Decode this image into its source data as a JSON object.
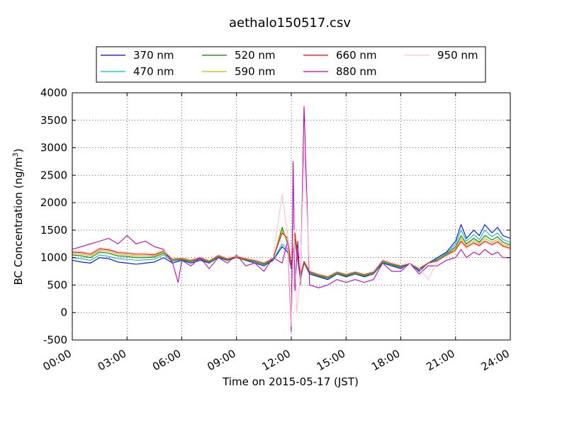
{
  "chart_data": {
    "type": "line",
    "title": "aethalo150517.csv",
    "xlabel": "Time on 2015-05-17 (JST)",
    "ylabel": "BC Concentration (ng/m",
    "ylabel_sup": "3",
    "ylabel_close": ")",
    "xlim": [
      "2015-05-17 00:00",
      "2015-05-18 00:00"
    ],
    "ylim": [
      -500,
      4000
    ],
    "x_ticks": [
      "00:00",
      "03:00",
      "06:00",
      "09:00",
      "12:00",
      "15:00",
      "18:00",
      "21:00",
      "24:00"
    ],
    "y_ticks": [
      -500,
      0,
      500,
      1000,
      1500,
      2000,
      2500,
      3000,
      3500,
      4000
    ],
    "grid": true,
    "legend_position": "top-center",
    "x_unit": "hours since 2015-05-17 00:00",
    "series": [
      {
        "name": "370 nm",
        "color": "#0000ff",
        "x": [
          0,
          0.5,
          1,
          1.5,
          2,
          2.5,
          3,
          3.5,
          4,
          4.5,
          5,
          5.5,
          6,
          6.5,
          7,
          7.5,
          8,
          8.5,
          9,
          9.5,
          10,
          10.5,
          11,
          11.5,
          11.8,
          12,
          12.2,
          12.5,
          12.7,
          13,
          13.5,
          14,
          14.5,
          15,
          15.5,
          16,
          16.5,
          17,
          17.5,
          18,
          18.5,
          19,
          19.5,
          20,
          20.5,
          21,
          21.3,
          21.6,
          22,
          22.3,
          22.6,
          23,
          23.3,
          23.6,
          24
        ],
        "values": [
          950,
          920,
          900,
          1000,
          980,
          920,
          900,
          880,
          900,
          920,
          1000,
          900,
          950,
          900,
          950,
          900,
          1000,
          950,
          1000,
          950,
          900,
          850,
          950,
          1200,
          1100,
          800,
          1300,
          600,
          900,
          700,
          650,
          600,
          700,
          650,
          700,
          650,
          700,
          900,
          850,
          800,
          900,
          750,
          900,
          1000,
          1100,
          1300,
          1600,
          1350,
          1500,
          1400,
          1600,
          1450,
          1550,
          1400,
          1350
        ]
      },
      {
        "name": "470 nm",
        "color": "#00bfbf",
        "x": [
          0,
          0.5,
          1,
          1.5,
          2,
          2.5,
          3,
          3.5,
          4,
          4.5,
          5,
          5.5,
          6,
          6.5,
          7,
          7.5,
          8,
          8.5,
          9,
          9.5,
          10,
          10.5,
          11,
          11.5,
          11.8,
          12,
          12.2,
          12.5,
          12.7,
          13,
          13.5,
          14,
          14.5,
          15,
          15.5,
          16,
          16.5,
          17,
          17.5,
          18,
          18.5,
          19,
          19.5,
          20,
          20.5,
          21,
          21.3,
          21.6,
          22,
          22.3,
          22.6,
          23,
          23.3,
          23.6,
          24
        ],
        "values": [
          1000,
          980,
          950,
          1050,
          1020,
          980,
          970,
          950,
          960,
          970,
          1050,
          930,
          960,
          920,
          970,
          910,
          1010,
          960,
          1000,
          960,
          920,
          870,
          960,
          1250,
          1150,
          820,
          1300,
          620,
          900,
          720,
          660,
          620,
          710,
          660,
          710,
          660,
          710,
          920,
          860,
          820,
          900,
          770,
          900,
          980,
          1080,
          1250,
          1500,
          1300,
          1420,
          1330,
          1500,
          1380,
          1450,
          1330,
          1280
        ]
      },
      {
        "name": "520 nm",
        "color": "#008000",
        "x": [
          0,
          0.5,
          1,
          1.5,
          2,
          2.5,
          3,
          3.5,
          4,
          4.5,
          5,
          5.5,
          6,
          6.5,
          7,
          7.5,
          8,
          8.5,
          9,
          9.5,
          10,
          10.5,
          11,
          11.5,
          11.8,
          12,
          12.2,
          12.5,
          12.7,
          13,
          13.5,
          14,
          14.5,
          15,
          15.5,
          16,
          16.5,
          17,
          17.5,
          18,
          18.5,
          19,
          19.5,
          20,
          20.5,
          21,
          21.3,
          21.6,
          22,
          22.3,
          22.6,
          23,
          23.3,
          23.6,
          24
        ],
        "values": [
          1050,
          1030,
          1000,
          1100,
          1080,
          1030,
          1020,
          1000,
          1000,
          1010,
          1080,
          950,
          970,
          930,
          980,
          920,
          1020,
          960,
          1000,
          960,
          930,
          880,
          970,
          1550,
          1250,
          830,
          1350,
          640,
          910,
          730,
          670,
          630,
          720,
          670,
          720,
          670,
          720,
          930,
          870,
          830,
          900,
          780,
          900,
          960,
          1060,
          1200,
          1400,
          1250,
          1350,
          1280,
          1400,
          1320,
          1380,
          1280,
          1230
        ]
      },
      {
        "name": "590 nm",
        "color": "#bfbf00",
        "x": [
          0,
          0.5,
          1,
          1.5,
          2,
          2.5,
          3,
          3.5,
          4,
          4.5,
          5,
          5.5,
          6,
          6.5,
          7,
          7.5,
          8,
          8.5,
          9,
          9.5,
          10,
          10.5,
          11,
          11.5,
          11.8,
          12,
          12.2,
          12.5,
          12.7,
          13,
          13.5,
          14,
          14.5,
          15,
          15.5,
          16,
          16.5,
          17,
          17.5,
          18,
          18.5,
          19,
          19.5,
          20,
          20.5,
          21,
          21.3,
          21.6,
          22,
          22.3,
          22.6,
          23,
          23.3,
          23.6,
          24
        ],
        "values": [
          1080,
          1060,
          1030,
          1130,
          1110,
          1060,
          1050,
          1030,
          1030,
          1030,
          1100,
          960,
          980,
          940,
          990,
          930,
          1030,
          970,
          1010,
          970,
          940,
          890,
          980,
          1500,
          1300,
          840,
          1400,
          650,
          920,
          740,
          680,
          640,
          730,
          680,
          730,
          680,
          730,
          940,
          880,
          840,
          900,
          790,
          900,
          950,
          1050,
          1170,
          1350,
          1220,
          1310,
          1250,
          1350,
          1280,
          1330,
          1240,
          1200
        ]
      },
      {
        "name": "660 nm",
        "color": "#ff0000",
        "x": [
          0,
          0.5,
          1,
          1.5,
          2,
          2.5,
          3,
          3.5,
          4,
          4.5,
          5,
          5.5,
          6,
          6.5,
          7,
          7.5,
          8,
          8.5,
          9,
          9.5,
          10,
          10.5,
          11,
          11.5,
          11.8,
          12,
          12.2,
          12.5,
          12.7,
          13,
          13.5,
          14,
          14.5,
          15,
          15.5,
          16,
          16.5,
          17,
          17.5,
          18,
          18.5,
          19,
          19.5,
          20,
          20.5,
          21,
          21.3,
          21.6,
          22,
          22.3,
          22.6,
          23,
          23.3,
          23.6,
          24
        ],
        "values": [
          1100,
          1090,
          1060,
          1160,
          1140,
          1090,
          1080,
          1060,
          1060,
          1050,
          1120,
          970,
          990,
          950,
          1000,
          940,
          1040,
          980,
          1020,
          980,
          950,
          900,
          990,
          1450,
          1350,
          850,
          1450,
          660,
          930,
          750,
          690,
          650,
          740,
          690,
          740,
          690,
          740,
          950,
          890,
          850,
          900,
          800,
          900,
          940,
          1040,
          1140,
          1300,
          1190,
          1270,
          1220,
          1300,
          1240,
          1290,
          1210,
          1170
        ]
      },
      {
        "name": "880 nm",
        "color": "#bf00bf",
        "x": [
          0,
          0.5,
          1,
          1.5,
          2,
          2.5,
          3,
          3.5,
          4,
          4.5,
          5,
          5.5,
          5.8,
          6,
          6.5,
          7,
          7.5,
          8,
          8.5,
          9,
          9.5,
          10,
          10.5,
          11,
          11.5,
          11.8,
          12,
          12.1,
          12.2,
          12.35,
          12.5,
          12.7,
          13,
          13.5,
          14,
          14.5,
          15,
          15.5,
          16,
          16.5,
          17,
          17.5,
          18,
          18.5,
          19,
          19.5,
          20,
          20.5,
          21,
          21.3,
          21.6,
          22,
          22.3,
          22.6,
          23,
          23.3,
          23.6,
          24
        ],
        "values": [
          1150,
          1200,
          1250,
          1300,
          1350,
          1250,
          1400,
          1250,
          1300,
          1200,
          1150,
          900,
          550,
          950,
          850,
          1000,
          800,
          1000,
          900,
          1050,
          850,
          900,
          750,
          1000,
          900,
          1300,
          -350,
          2750,
          400,
          1300,
          500,
          3750,
          500,
          450,
          500,
          600,
          550,
          600,
          550,
          600,
          900,
          750,
          750,
          900,
          700,
          850,
          850,
          950,
          1000,
          1150,
          1000,
          1100,
          1050,
          1150,
          1050,
          1100,
          1000,
          1000
        ]
      },
      {
        "name": "950 nm",
        "color": "#ffc0cb",
        "x": [
          0,
          0.5,
          1,
          1.5,
          2,
          2.5,
          3,
          3.5,
          4,
          4.5,
          5,
          5.5,
          6,
          6.5,
          7,
          7.5,
          8,
          8.5,
          9,
          9.5,
          10,
          10.5,
          11,
          11.5,
          11.8,
          12,
          12.15,
          12.3,
          12.5,
          12.7,
          13,
          13.5,
          14,
          14.5,
          15,
          15.5,
          16,
          16.5,
          17,
          17.5,
          18,
          18.5,
          19,
          19.5,
          20,
          20.5,
          21,
          21.3,
          21.6,
          22,
          22.3,
          22.6,
          23,
          23.3,
          23.6,
          24
        ],
        "values": [
          1120,
          1110,
          1080,
          1180,
          1160,
          1110,
          1100,
          1080,
          1080,
          1070,
          1130,
          980,
          1000,
          960,
          1010,
          950,
          1050,
          990,
          1030,
          990,
          960,
          910,
          1000,
          2150,
          1400,
          -250,
          1500,
          0,
          670,
          3000,
          760,
          700,
          660,
          750,
          700,
          750,
          700,
          750,
          960,
          900,
          860,
          900,
          810,
          600,
          930,
          1030,
          1120,
          1270,
          1160,
          1250,
          1200,
          1270,
          1220,
          1270,
          1190,
          1150
        ]
      }
    ]
  }
}
